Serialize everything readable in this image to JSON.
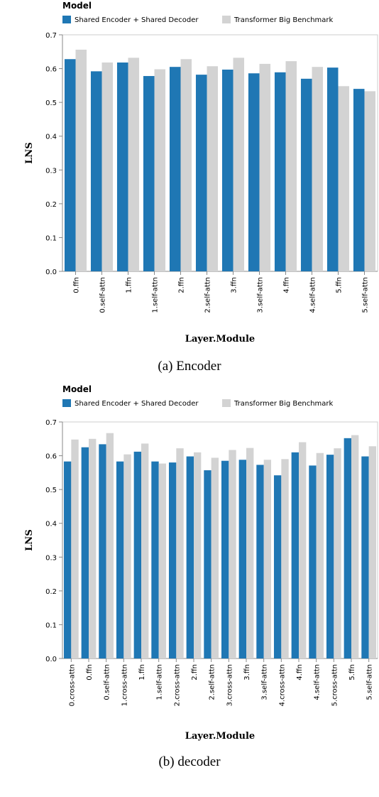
{
  "chart_data": [
    {
      "type": "bar",
      "caption": "(a) Encoder",
      "legend": {
        "title": "Model",
        "position": "top-left",
        "entries": [
          "Shared Encoder + Shared Decoder",
          "Transformer Big Benchmark"
        ]
      },
      "colors": [
        "#1f77b4",
        "#d3d3d3"
      ],
      "xlabel": "Layer.Module",
      "ylabel": "LNS",
      "ylim": [
        0,
        0.7
      ],
      "yticks": [
        "0.0",
        "0.1",
        "0.2",
        "0.3",
        "0.4",
        "0.5",
        "0.6",
        "0.7"
      ],
      "grid": false,
      "categories": [
        "0.ffn",
        "0.self-attn",
        "1.ffn",
        "1.self-attn",
        "2.ffn",
        "2.self-attn",
        "3.ffn",
        "3.self-attn",
        "4.ffn",
        "4.self-attn",
        "5.ffn",
        "5.self-attn"
      ],
      "series": [
        {
          "name": "Shared Encoder + Shared Decoder",
          "values": [
            0.628,
            0.592,
            0.618,
            0.578,
            0.605,
            0.582,
            0.597,
            0.586,
            0.589,
            0.57,
            0.603,
            0.54
          ]
        },
        {
          "name": "Transformer Big Benchmark",
          "values": [
            0.656,
            0.618,
            0.632,
            0.598,
            0.628,
            0.607,
            0.632,
            0.614,
            0.622,
            0.605,
            0.548,
            0.533
          ]
        }
      ]
    },
    {
      "type": "bar",
      "caption": "(b) decoder",
      "legend": {
        "title": "Model",
        "position": "top-left",
        "entries": [
          "Shared Encoder + Shared Decoder",
          "Transformer Big Benchmark"
        ]
      },
      "colors": [
        "#1f77b4",
        "#d3d3d3"
      ],
      "xlabel": "Layer.Module",
      "ylabel": "LNS",
      "ylim": [
        0,
        0.7
      ],
      "yticks": [
        "0.0",
        "0.1",
        "0.2",
        "0.3",
        "0.4",
        "0.5",
        "0.6",
        "0.7"
      ],
      "grid": false,
      "categories": [
        "0.cross-attn",
        "0.ffn",
        "0.self-attn",
        "1.cross-attn",
        "1.ffn",
        "1.self-attn",
        "2.cross-attn",
        "2.ffn",
        "2.self-attn",
        "3.cross-attn",
        "3.ffn",
        "3.self-attn",
        "4.cross-attn",
        "4.ffn",
        "4.self-attn",
        "5.cross-attn",
        "5.ffn",
        "5.self-attn"
      ],
      "series": [
        {
          "name": "Shared Encoder + Shared Decoder",
          "values": [
            0.583,
            0.625,
            0.634,
            0.583,
            0.612,
            0.583,
            0.58,
            0.598,
            0.557,
            0.585,
            0.588,
            0.573,
            0.542,
            0.61,
            0.571,
            0.603,
            0.652,
            0.598
          ]
        },
        {
          "name": "Transformer Big Benchmark",
          "values": [
            0.648,
            0.65,
            0.667,
            0.604,
            0.636,
            0.577,
            0.622,
            0.61,
            0.594,
            0.617,
            0.623,
            0.588,
            0.59,
            0.64,
            0.608,
            0.622,
            0.661,
            0.628
          ]
        }
      ]
    }
  ]
}
